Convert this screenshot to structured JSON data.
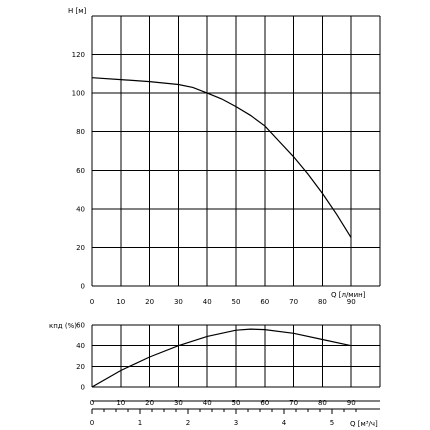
{
  "chart_data": [
    {
      "type": "line",
      "ylabel": "H [м]",
      "xlabel": "Q [л/мин]",
      "xlim": [
        0,
        100
      ],
      "ylim": [
        0,
        140
      ],
      "x_ticks": [
        "0",
        "10",
        "20",
        "30",
        "40",
        "50",
        "60",
        "70",
        "80",
        "90"
      ],
      "y_ticks": [
        "0",
        "20",
        "40",
        "60",
        "80",
        "100",
        "120"
      ],
      "grid": true,
      "series": [
        {
          "x": [
            0,
            10,
            20,
            30,
            35,
            40,
            45,
            50,
            55,
            60,
            65,
            70,
            75,
            80,
            85,
            90
          ],
          "y": [
            108,
            107,
            106,
            104.5,
            103,
            100,
            97,
            93,
            88.5,
            83,
            75,
            67,
            58,
            48,
            37,
            25
          ]
        }
      ]
    },
    {
      "type": "line",
      "ylabel": "кпд (%)",
      "xlim": [
        0,
        100
      ],
      "ylim": [
        0,
        60
      ],
      "x_ticks": [
        "0",
        "10",
        "20",
        "30",
        "40",
        "50",
        "60",
        "70",
        "80",
        "90"
      ],
      "y_ticks": [
        "0",
        "20",
        "40",
        "60"
      ],
      "grid": true,
      "series": [
        {
          "x": [
            0,
            10,
            20,
            30,
            40,
            50,
            55,
            60,
            70,
            80,
            90
          ],
          "y": [
            0,
            16,
            29,
            40,
            49,
            55,
            56,
            55.5,
            52,
            46,
            40
          ]
        }
      ]
    },
    {
      "type": "axis",
      "xlabel": "Q [м³/ч]",
      "xlim": [
        0,
        6
      ],
      "x_ticks": [
        "0",
        "1",
        "2",
        "3",
        "4",
        "5"
      ]
    }
  ]
}
